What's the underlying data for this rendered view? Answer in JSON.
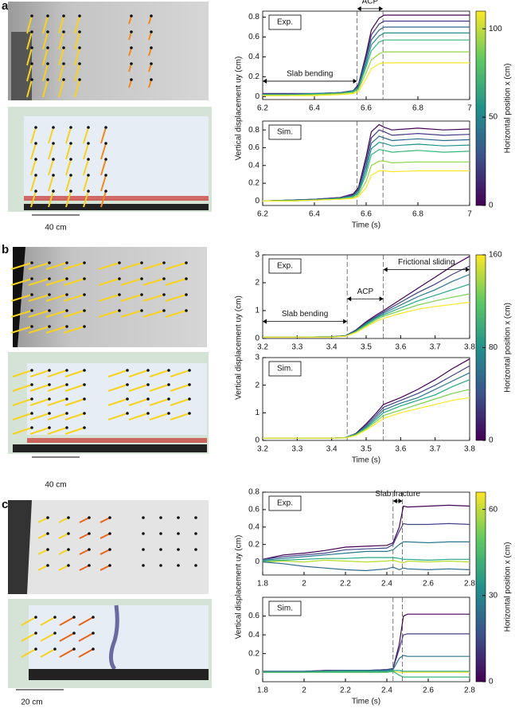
{
  "panels": [
    {
      "label": "a",
      "scale_bar": "40 cm"
    },
    {
      "label": "b",
      "scale_bar": "40 cm"
    },
    {
      "label": "c",
      "scale_bar": "20 cm"
    }
  ],
  "chart_data": [
    {
      "type": "line",
      "tag": "Exp.",
      "ylabel": "Vertical displacement uy (cm)",
      "x": [
        6.2,
        6.3,
        6.4,
        6.5,
        6.55,
        6.57,
        6.6,
        6.62,
        6.65,
        6.67,
        6.7,
        6.8,
        6.9,
        7
      ],
      "xlim": [
        6.2,
        7
      ],
      "xticks": [
        6.2,
        6.4,
        6.6,
        6.8,
        7
      ],
      "ylim": [
        -0.03,
        0.86
      ],
      "yticks": [
        0,
        0.2,
        0.4,
        0.6,
        0.8
      ],
      "vlines": [
        6.565,
        6.665
      ],
      "annotations": [
        {
          "text": "Slab bending",
          "x": [
            6.2,
            6.565
          ]
        },
        {
          "text": "ACP",
          "x": [
            6.565,
            6.665
          ]
        }
      ],
      "colorbar": {
        "label": "Horizontal position x (cm)",
        "lim": [
          0,
          110
        ],
        "ticks": [
          0,
          50,
          100
        ]
      },
      "series": [
        {
          "color": "#440154",
          "values": [
            0.03,
            0.03,
            0.03,
            0.04,
            0.06,
            0.12,
            0.43,
            0.67,
            0.79,
            0.82,
            0.82,
            0.82,
            0.82,
            0.82
          ]
        },
        {
          "color": "#443983",
          "values": [
            0.03,
            0.03,
            0.03,
            0.04,
            0.06,
            0.11,
            0.4,
            0.62,
            0.73,
            0.76,
            0.76,
            0.76,
            0.76,
            0.76
          ]
        },
        {
          "color": "#31688e",
          "values": [
            0.02,
            0.02,
            0.03,
            0.04,
            0.06,
            0.1,
            0.37,
            0.57,
            0.67,
            0.7,
            0.7,
            0.7,
            0.7,
            0.7
          ]
        },
        {
          "color": "#21918c",
          "values": [
            0.02,
            0.02,
            0.03,
            0.03,
            0.05,
            0.09,
            0.33,
            0.52,
            0.61,
            0.64,
            0.64,
            0.64,
            0.64,
            0.64
          ]
        },
        {
          "color": "#35b779",
          "values": [
            0.02,
            0.02,
            0.02,
            0.03,
            0.05,
            0.08,
            0.3,
            0.46,
            0.55,
            0.57,
            0.57,
            0.57,
            0.57,
            0.57
          ]
        },
        {
          "color": "#90d743",
          "values": [
            0.01,
            0.01,
            0.02,
            0.03,
            0.04,
            0.07,
            0.24,
            0.37,
            0.43,
            0.45,
            0.45,
            0.45,
            0.45,
            0.45
          ]
        },
        {
          "color": "#fde725",
          "values": [
            0.01,
            0.01,
            0.01,
            0.02,
            0.03,
            0.05,
            0.18,
            0.28,
            0.33,
            0.34,
            0.34,
            0.34,
            0.34,
            0.34
          ]
        }
      ]
    },
    {
      "type": "line",
      "tag": "Sim.",
      "xlabel": "Time (s)",
      "x": [
        6.2,
        6.3,
        6.4,
        6.5,
        6.55,
        6.57,
        6.6,
        6.62,
        6.65,
        6.67,
        6.7,
        6.8,
        6.9,
        7
      ],
      "xlim": [
        6.2,
        7
      ],
      "xticks": [
        6.2,
        6.4,
        6.6,
        6.8,
        7
      ],
      "ylim": [
        -0.05,
        0.9
      ],
      "yticks": [
        0,
        0.2,
        0.4,
        0.6,
        0.8
      ],
      "vlines": [
        6.565,
        6.665
      ],
      "series": [
        {
          "color": "#440154",
          "values": [
            0,
            0.01,
            0.02,
            0.04,
            0.08,
            0.15,
            0.5,
            0.78,
            0.86,
            0.83,
            0.8,
            0.82,
            0.8,
            0.81
          ]
        },
        {
          "color": "#443983",
          "values": [
            0,
            0.01,
            0.02,
            0.04,
            0.07,
            0.13,
            0.45,
            0.71,
            0.8,
            0.78,
            0.74,
            0.76,
            0.74,
            0.75
          ]
        },
        {
          "color": "#31688e",
          "values": [
            0,
            0.01,
            0.02,
            0.03,
            0.06,
            0.12,
            0.4,
            0.65,
            0.73,
            0.71,
            0.68,
            0.7,
            0.68,
            0.69
          ]
        },
        {
          "color": "#21918c",
          "values": [
            0,
            0.01,
            0.01,
            0.03,
            0.05,
            0.1,
            0.35,
            0.59,
            0.66,
            0.65,
            0.62,
            0.64,
            0.62,
            0.63
          ]
        },
        {
          "color": "#35b779",
          "values": [
            0,
            0,
            0.01,
            0.03,
            0.05,
            0.09,
            0.3,
            0.52,
            0.58,
            0.57,
            0.55,
            0.57,
            0.55,
            0.56
          ]
        },
        {
          "color": "#90d743",
          "values": [
            0,
            0,
            0.01,
            0.02,
            0.04,
            0.07,
            0.22,
            0.4,
            0.45,
            0.45,
            0.43,
            0.44,
            0.44,
            0.44
          ]
        },
        {
          "color": "#fde725",
          "values": [
            0,
            0,
            0.01,
            0.02,
            0.03,
            0.05,
            0.15,
            0.29,
            0.34,
            0.34,
            0.33,
            0.34,
            0.34,
            0.34
          ]
        }
      ]
    },
    {
      "type": "line",
      "tag": "Exp.",
      "ylabel": "Vertical displacement uy (cm)",
      "x": [
        3.2,
        3.3,
        3.4,
        3.44,
        3.47,
        3.5,
        3.53,
        3.55,
        3.6,
        3.65,
        3.7,
        3.75,
        3.8
      ],
      "xlim": [
        3.2,
        3.8
      ],
      "xticks": [
        3.2,
        3.3,
        3.4,
        3.5,
        3.6,
        3.7,
        3.8
      ],
      "ylim": [
        0,
        3
      ],
      "yticks": [
        0,
        1,
        2,
        3
      ],
      "vlines": [
        3.445,
        3.55
      ],
      "annotations": [
        {
          "text": "Slab bending",
          "x": [
            3.2,
            3.445
          ]
        },
        {
          "text": "ACP",
          "x": [
            3.445,
            3.55
          ]
        },
        {
          "text": "Frictional sliding",
          "x": [
            3.55,
            3.8
          ]
        }
      ],
      "colorbar": {
        "label": "Horizontal position x (cm)",
        "lim": [
          0,
          160
        ],
        "ticks": [
          0,
          80,
          160
        ]
      },
      "series": [
        {
          "color": "#440154",
          "values": [
            0.05,
            0.05,
            0.06,
            0.1,
            0.3,
            0.6,
            0.85,
            1.0,
            1.4,
            1.8,
            2.2,
            2.6,
            2.95
          ]
        },
        {
          "color": "#414487",
          "values": [
            0.05,
            0.05,
            0.06,
            0.1,
            0.28,
            0.57,
            0.8,
            0.95,
            1.3,
            1.65,
            1.95,
            2.3,
            2.6
          ]
        },
        {
          "color": "#2a788e",
          "values": [
            0.05,
            0.05,
            0.06,
            0.09,
            0.27,
            0.54,
            0.77,
            0.9,
            1.2,
            1.5,
            1.75,
            2.05,
            2.3
          ]
        },
        {
          "color": "#22a884",
          "values": [
            0.05,
            0.05,
            0.06,
            0.09,
            0.25,
            0.5,
            0.73,
            0.85,
            1.1,
            1.35,
            1.55,
            1.75,
            1.95
          ]
        },
        {
          "color": "#7ad151",
          "values": [
            0.05,
            0.05,
            0.05,
            0.08,
            0.23,
            0.46,
            0.68,
            0.8,
            1.0,
            1.2,
            1.35,
            1.48,
            1.6
          ]
        },
        {
          "color": "#fde725",
          "values": [
            0.05,
            0.05,
            0.05,
            0.08,
            0.21,
            0.42,
            0.62,
            0.72,
            0.9,
            1.05,
            1.15,
            1.22,
            1.3
          ]
        }
      ]
    },
    {
      "type": "line",
      "tag": "Sim.",
      "xlabel": "Time (s)",
      "x": [
        3.2,
        3.3,
        3.4,
        3.44,
        3.47,
        3.5,
        3.53,
        3.55,
        3.6,
        3.65,
        3.7,
        3.75,
        3.8
      ],
      "xlim": [
        3.2,
        3.8
      ],
      "xticks": [
        3.2,
        3.3,
        3.4,
        3.5,
        3.6,
        3.7,
        3.8
      ],
      "ylim": [
        0,
        3
      ],
      "yticks": [
        0,
        1,
        2,
        3
      ],
      "vlines": [
        3.445,
        3.55
      ],
      "series": [
        {
          "color": "#440154",
          "values": [
            0.08,
            0.08,
            0.08,
            0.1,
            0.25,
            0.6,
            1.0,
            1.3,
            1.55,
            1.85,
            2.2,
            2.6,
            2.95
          ]
        },
        {
          "color": "#414487",
          "values": [
            0.08,
            0.08,
            0.08,
            0.1,
            0.24,
            0.55,
            0.92,
            1.2,
            1.45,
            1.7,
            2.0,
            2.35,
            2.7
          ]
        },
        {
          "color": "#2a788e",
          "values": [
            0.08,
            0.08,
            0.08,
            0.1,
            0.23,
            0.5,
            0.85,
            1.1,
            1.35,
            1.55,
            1.85,
            2.15,
            2.45
          ]
        },
        {
          "color": "#22a884",
          "values": [
            0.08,
            0.08,
            0.08,
            0.1,
            0.22,
            0.46,
            0.78,
            1.0,
            1.25,
            1.45,
            1.65,
            1.95,
            2.2
          ]
        },
        {
          "color": "#7ad151",
          "values": [
            0.08,
            0.08,
            0.08,
            0.09,
            0.2,
            0.42,
            0.7,
            0.9,
            1.1,
            1.3,
            1.5,
            1.7,
            1.85
          ]
        },
        {
          "color": "#fde725",
          "values": [
            0.08,
            0.08,
            0.08,
            0.09,
            0.18,
            0.38,
            0.62,
            0.8,
            1.0,
            1.15,
            1.3,
            1.45,
            1.55
          ]
        }
      ]
    },
    {
      "type": "line",
      "tag": "Exp.",
      "ylabel": "Vertical displacement uy (cm)",
      "x": [
        1.8,
        1.9,
        2.0,
        2.1,
        2.2,
        2.3,
        2.4,
        2.43,
        2.46,
        2.48,
        2.5,
        2.6,
        2.7,
        2.8
      ],
      "xlim": [
        1.8,
        2.8
      ],
      "xticks": [
        1.8,
        2,
        2.2,
        2.4,
        2.6,
        2.8
      ],
      "ylim": [
        -0.15,
        0.8
      ],
      "yticks": [
        0,
        0.2,
        0.4,
        0.6,
        0.8
      ],
      "vlines": [
        2.43,
        2.475
      ],
      "annotations": [
        {
          "text": "Slab fracture",
          "x": [
            2.43,
            2.475
          ]
        }
      ],
      "colorbar": {
        "label": "Horizontal position x (cm)",
        "lim": [
          0,
          66
        ],
        "ticks": [
          0,
          30,
          60
        ]
      },
      "series": [
        {
          "color": "#440154",
          "values": [
            0.03,
            0.08,
            0.1,
            0.13,
            0.17,
            0.18,
            0.19,
            0.22,
            0.4,
            0.64,
            0.63,
            0.64,
            0.65,
            0.64
          ]
        },
        {
          "color": "#414487",
          "values": [
            0.03,
            0.06,
            0.08,
            0.1,
            0.14,
            0.15,
            0.16,
            0.2,
            0.35,
            0.44,
            0.43,
            0.43,
            0.44,
            0.43
          ]
        },
        {
          "color": "#2a788e",
          "values": [
            0.02,
            0.04,
            0.06,
            0.08,
            0.1,
            0.12,
            0.12,
            0.14,
            0.2,
            0.23,
            0.23,
            0.22,
            0.23,
            0.23
          ]
        },
        {
          "color": "#22a884",
          "values": [
            0.01,
            0.02,
            0.03,
            0.04,
            0.04,
            0.05,
            0.05,
            0.05,
            0.04,
            0.03,
            0.03,
            0.02,
            0.03,
            0.03
          ]
        },
        {
          "color": "#b5de2b",
          "values": [
            0.0,
            0.01,
            0.0,
            0.02,
            0.01,
            0.0,
            0.01,
            0.02,
            0.0,
            -0.01,
            0.01,
            0.0,
            0.01,
            0.0
          ]
        },
        {
          "color": "#31688e",
          "values": [
            0.0,
            -0.02,
            -0.05,
            -0.07,
            -0.09,
            -0.1,
            -0.08,
            -0.06,
            -0.09,
            -0.07,
            -0.08,
            -0.09,
            -0.08,
            -0.09
          ]
        }
      ]
    },
    {
      "type": "line",
      "tag": "Sim.",
      "xlabel": "Time (s)",
      "x": [
        1.8,
        1.9,
        2.0,
        2.1,
        2.2,
        2.3,
        2.4,
        2.43,
        2.46,
        2.48,
        2.5,
        2.6,
        2.7,
        2.8
      ],
      "xlim": [
        1.8,
        2.8
      ],
      "xticks": [
        1.8,
        2,
        2.2,
        2.4,
        2.6,
        2.8
      ],
      "ylim": [
        -0.1,
        0.8
      ],
      "yticks": [
        0,
        0.2,
        0.4,
        0.6
      ],
      "vlines": [
        2.43,
        2.475
      ],
      "series": [
        {
          "color": "#440154",
          "values": [
            0.01,
            0.01,
            0.01,
            0.02,
            0.02,
            0.02,
            0.03,
            0.04,
            0.3,
            0.6,
            0.62,
            0.62,
            0.62,
            0.62
          ]
        },
        {
          "color": "#414487",
          "values": [
            0.01,
            0.01,
            0.01,
            0.02,
            0.02,
            0.02,
            0.03,
            0.04,
            0.25,
            0.4,
            0.41,
            0.41,
            0.41,
            0.41
          ]
        },
        {
          "color": "#2a788e",
          "values": [
            0.01,
            0.01,
            0.01,
            0.01,
            0.02,
            0.02,
            0.02,
            0.03,
            0.15,
            0.18,
            0.17,
            0.17,
            0.17,
            0.17
          ]
        },
        {
          "color": "#22a884",
          "values": [
            0,
            0,
            0,
            0.01,
            0.01,
            0.01,
            0.01,
            0.02,
            0.02,
            0.01,
            0.01,
            0.01,
            0.01,
            0.01
          ]
        },
        {
          "color": "#fde725",
          "values": [
            0,
            0,
            0,
            0,
            0,
            0,
            0,
            0.01,
            0,
            0,
            0,
            0,
            0,
            0
          ]
        },
        {
          "color": "#35b779",
          "values": [
            0,
            0,
            0,
            0,
            0,
            0,
            0,
            0.01,
            -0.03,
            -0.05,
            -0.05,
            -0.05,
            -0.05,
            -0.05
          ]
        }
      ]
    }
  ]
}
